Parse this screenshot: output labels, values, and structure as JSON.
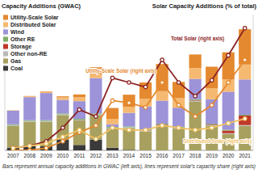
{
  "chart_data": {
    "type": "bar",
    "stacked": true,
    "y_label": "Capacity Additions (GWAC)",
    "y2_label": "Solar Capacity Additions (% of total)",
    "footnote": "Bars represent annual capacity additions in GWAC (left axis), lines represent solar's capacity share (right axis)",
    "categories": [
      "2007",
      "2008",
      "2009",
      "2010",
      "2011",
      "2012",
      "2013",
      "2014",
      "2015",
      "2016",
      "2017",
      "2018",
      "2019",
      "2020",
      "2021"
    ],
    "ylim": [
      0,
      50
    ],
    "y2lim": [
      0,
      60
    ],
    "tick_labels": "x",
    "legend": "top-left",
    "series": [
      {
        "name": "Utility-Scale Solar",
        "color": "#e4892f",
        "values": [
          0.05,
          0.1,
          0.2,
          0.4,
          1,
          2.5,
          4,
          4.5,
          6,
          10,
          6,
          5,
          8,
          10,
          13
        ]
      },
      {
        "name": "Distributed Solar",
        "color": "#f5b971",
        "values": [
          0.1,
          0.3,
          0.4,
          0.9,
          1.5,
          1.5,
          2,
          2.2,
          2.8,
          3.5,
          3.5,
          4,
          4,
          4.5,
          5.5
        ]
      },
      {
        "name": "Wind",
        "color": "#9d93d8",
        "values": [
          5,
          8.5,
          10,
          5,
          6.5,
          13,
          1,
          5,
          8.5,
          8.5,
          7,
          7.5,
          9,
          14,
          13
        ]
      },
      {
        "name": "Other RE",
        "color": "#7fb069",
        "values": [
          0.3,
          0.3,
          0.3,
          0.3,
          0.3,
          0.3,
          0.3,
          0.3,
          0.3,
          0.3,
          0.3,
          0.3,
          0.3,
          0.3,
          0.3
        ]
      },
      {
        "name": "Storage",
        "color": "#c0392b",
        "values": [
          0,
          0,
          0,
          0,
          0,
          0,
          0,
          0,
          0.1,
          0.2,
          0.1,
          0.2,
          0.2,
          1,
          3.5
        ]
      },
      {
        "name": "Other non-RE",
        "color": "#b9b9b9",
        "values": [
          0.3,
          0.3,
          0.3,
          0.3,
          0.3,
          0.3,
          0.3,
          0.3,
          0.3,
          0.3,
          0.3,
          0.3,
          0.3,
          0.3,
          0.3
        ]
      },
      {
        "name": "Gas",
        "color": "#a8a05f",
        "values": [
          8,
          9,
          9,
          9,
          9,
          9,
          7,
          8,
          7,
          9,
          8,
          18,
          9,
          6,
          9
        ]
      },
      {
        "name": "Coal",
        "color": "#3a3a3a",
        "values": [
          1,
          1.5,
          1.5,
          4,
          2,
          4,
          1,
          0.2,
          0,
          0,
          0,
          0,
          0,
          0,
          0
        ]
      },
      {
        "name": "Total Solar (right axis)",
        "type": "line",
        "axis": "y2",
        "marker": "circle",
        "color": "#8b2323",
        "values": [
          1,
          2,
          4,
          10,
          18,
          15,
          32,
          30,
          28,
          40,
          30,
          24,
          31,
          42,
          54
        ]
      },
      {
        "name": "Utility-Scale Solar (right axis)",
        "type": "line",
        "axis": "y2",
        "marker": "circle",
        "color": "#e4892f",
        "values": [
          0,
          0,
          1,
          4,
          8,
          11,
          22,
          21,
          19,
          30,
          20,
          15,
          20,
          30,
          40
        ]
      },
      {
        "name": "Distributed Solar (right axis)",
        "type": "line",
        "axis": "y2",
        "marker": "circle",
        "color": "#f0c060",
        "values": [
          1,
          2,
          3,
          6,
          9,
          5,
          10,
          9,
          9,
          11,
          10,
          9,
          10,
          12,
          14
        ]
      }
    ]
  }
}
